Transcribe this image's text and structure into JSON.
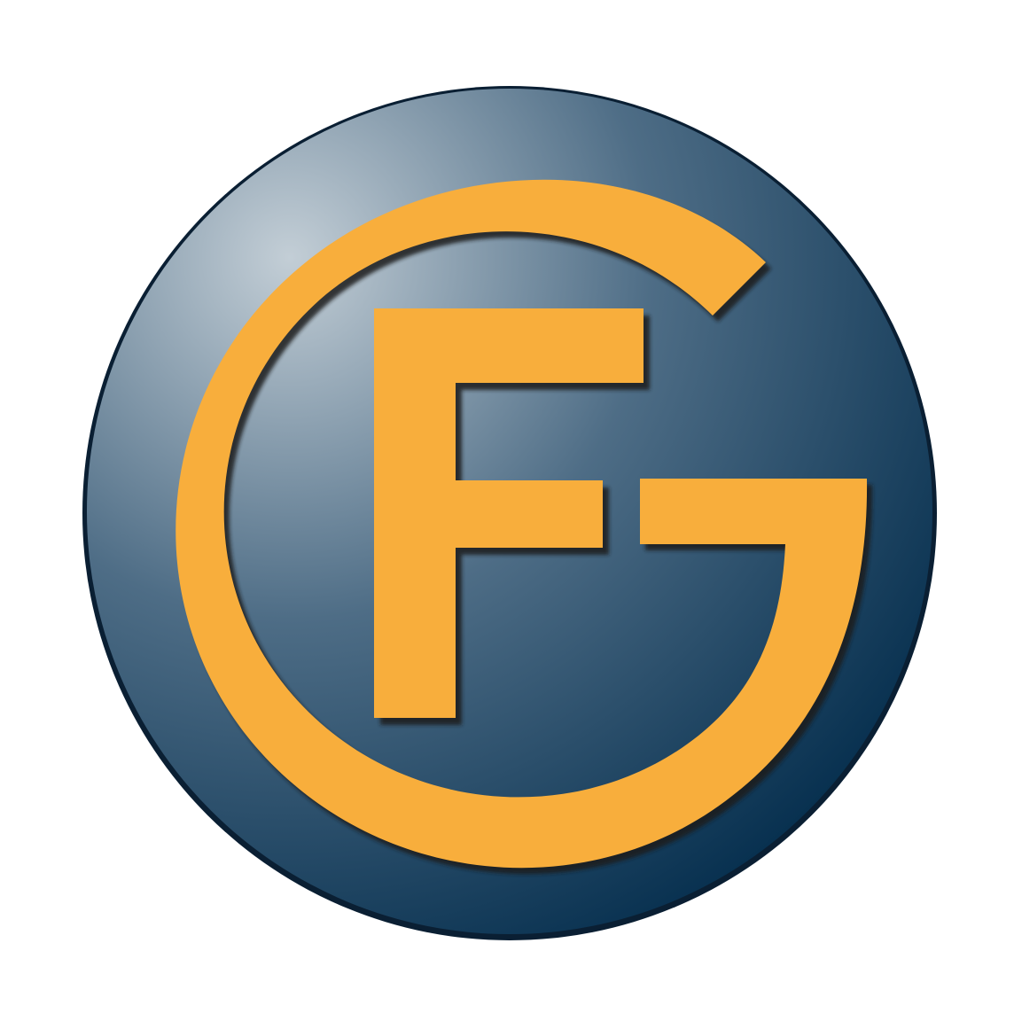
{
  "logo": {
    "monogram": "GF",
    "icon": "gf-monogram-badge",
    "colors": {
      "background": "#ffffff",
      "badge_highlight": "#c3ced6",
      "badge_mid": "#4e6d86",
      "badge_dark": "#002a4a",
      "badge_rim": "#0a1f33",
      "letter_fill": "#f8ae3c",
      "letter_shadow": "#1a1a1a"
    }
  }
}
